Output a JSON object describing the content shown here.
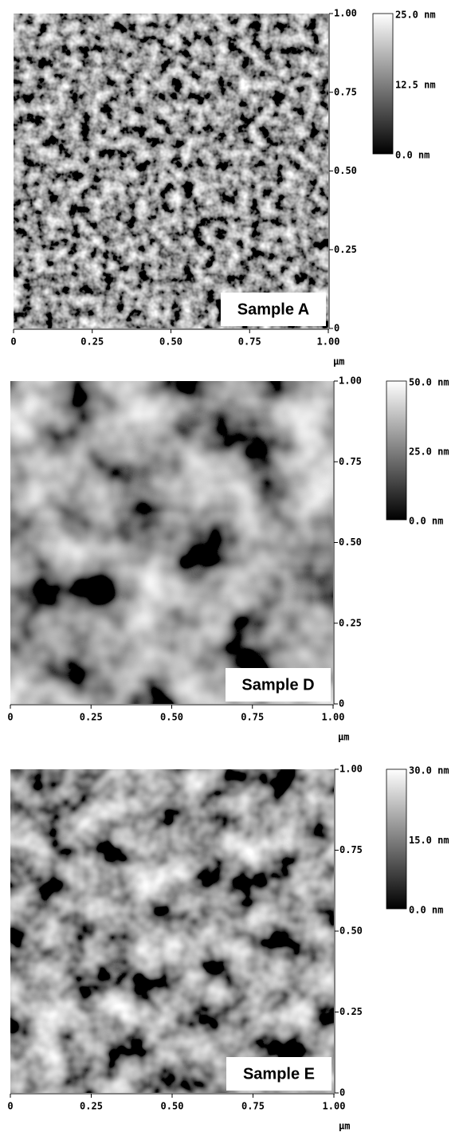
{
  "panels": [
    {
      "label": "Sample A",
      "y_ticks": [
        "1.00",
        "0.75",
        "0.50",
        "0.25",
        "0"
      ],
      "x_ticks": [
        "0",
        "0.25",
        "0.50",
        "0.75",
        "1.00"
      ],
      "x_unit": "μm",
      "colorbar_ticks": [
        "25.0 nm",
        "12.5 nm",
        "0.0 nm"
      ]
    },
    {
      "label": "Sample D",
      "y_ticks": [
        "1.00",
        "0.75",
        "0.50",
        "0.25",
        "0"
      ],
      "x_ticks": [
        "0",
        "0.25",
        "0.50",
        "0.75",
        "1.00"
      ],
      "x_unit": "μm",
      "colorbar_ticks": [
        "50.0 nm",
        "25.0 nm",
        "0.0 nm"
      ]
    },
    {
      "label": "Sample E",
      "y_ticks": [
        "1.00",
        "0.75",
        "0.50",
        "0.25",
        "0"
      ],
      "x_ticks": [
        "0",
        "0.25",
        "0.50",
        "0.75",
        "1.00"
      ],
      "x_unit": "μm",
      "colorbar_ticks": [
        "30.0 nm",
        "15.0 nm",
        "0.0 nm"
      ]
    }
  ]
}
